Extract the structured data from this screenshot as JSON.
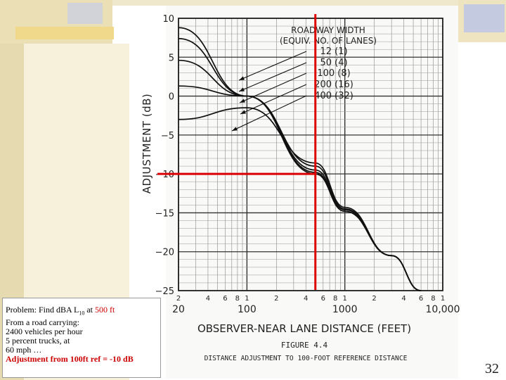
{
  "slide": {
    "number": "32"
  },
  "problem": {
    "line1_prefix": "Problem: Find dBA L",
    "line1_sub": "10",
    "line1_mid": " at ",
    "line1_value": "500 ft",
    "line2": "From a road carrying:",
    "line3": "2400 vehicles per hour",
    "line4": "5 percent trucks, at",
    "line5": "60 mph …",
    "answer": "Adjustment from 100ft ref = -10 dB"
  },
  "chart_data": {
    "type": "line",
    "title": "FIGURE 4.4",
    "subtitle": "DISTANCE ADJUSTMENT TO 100-FOOT REFERENCE DISTANCE",
    "xlabel": "OBSERVER-NEAR LANE DISTANCE (FEET)",
    "ylabel": "ADJUSTMENT (dB)",
    "x_scale": "log",
    "xlim": [
      20,
      10000
    ],
    "ylim": [
      -25,
      10
    ],
    "grid": true,
    "y_ticks": [
      10,
      5,
      0,
      -5,
      -10,
      -15,
      -20,
      -25
    ],
    "y_tick_labels": [
      "10",
      "5",
      "0",
      "−5",
      "−10",
      "−15",
      "−20",
      "−25"
    ],
    "x_major_ticks": [
      20,
      100,
      1000,
      10000
    ],
    "x_major_labels": [
      "20",
      "100",
      "1000",
      "10,000"
    ],
    "x_minor_labels": [
      "2",
      "4",
      "6",
      "8",
      "1",
      "2",
      "4",
      "6",
      "8",
      "1",
      "2",
      "4",
      "6",
      "8",
      "1"
    ],
    "legend": {
      "title_line1": "ROADWAY WIDTH",
      "title_line2": "(EQUIV. NO. OF LANES)",
      "entries": [
        "12 (1)",
        "50 (4)",
        "100 (8)",
        "200 (16)",
        "400 (32)"
      ],
      "placement": "top-right"
    },
    "series": [
      {
        "name": "12 (1)",
        "x": [
          20,
          100,
          500,
          1000,
          3000,
          6000
        ],
        "y": [
          8.8,
          0.0,
          -10.0,
          -14.8,
          -20.5,
          -25.0
        ]
      },
      {
        "name": "50 (4)",
        "x": [
          20,
          100,
          500,
          1000,
          3000,
          6000
        ],
        "y": [
          7.4,
          0.0,
          -9.8,
          -14.8,
          -20.5,
          -25.0
        ]
      },
      {
        "name": "100 (8)",
        "x": [
          20,
          100,
          500,
          1000,
          3000,
          6000
        ],
        "y": [
          4.6,
          0.0,
          -9.5,
          -14.6,
          -20.5,
          -25.0
        ]
      },
      {
        "name": "200 (16)",
        "x": [
          20,
          100,
          500,
          1000,
          3000,
          6000
        ],
        "y": [
          1.3,
          0.0,
          -9.0,
          -14.5,
          -20.5,
          -25.0
        ]
      },
      {
        "name": "400 (32)",
        "x": [
          20,
          100,
          500,
          1000,
          3000,
          6000
        ],
        "y": [
          -3.0,
          -1.5,
          -8.6,
          -14.3,
          -20.5,
          -25.0
        ]
      }
    ],
    "highlight": {
      "x": 500,
      "y": -10,
      "color": "#dd0000"
    }
  }
}
